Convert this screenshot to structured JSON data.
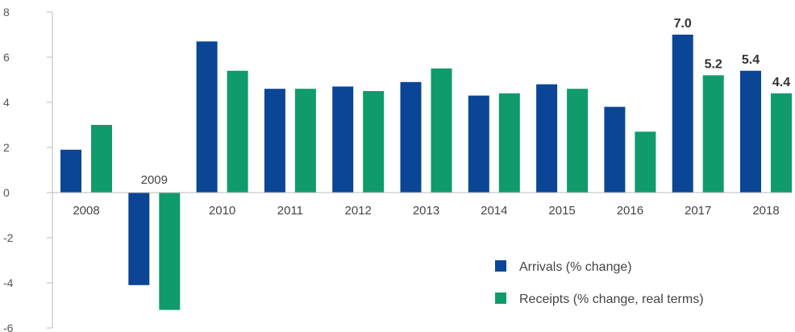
{
  "chart_data": {
    "type": "bar",
    "categories": [
      "2008",
      "2009",
      "2010",
      "2011",
      "2012",
      "2013",
      "2014",
      "2015",
      "2016",
      "2017",
      "2018"
    ],
    "series": [
      {
        "name": "Arrivals (% change)",
        "color": "#0b4595",
        "values": [
          1.9,
          -4.1,
          6.7,
          4.6,
          4.7,
          4.9,
          4.3,
          4.8,
          3.8,
          7.0,
          5.4
        ]
      },
      {
        "name": "Receipts (% change, real terms)",
        "color": "#0f9b6c",
        "values": [
          3.0,
          -5.2,
          5.4,
          4.6,
          4.5,
          5.5,
          4.4,
          4.6,
          2.7,
          5.2,
          4.4
        ]
      }
    ],
    "data_labels": [
      {
        "category": "2017",
        "series": 0,
        "text": "7.0"
      },
      {
        "category": "2017",
        "series": 1,
        "text": "5.2"
      },
      {
        "category": "2018",
        "series": 0,
        "text": "5.4"
      },
      {
        "category": "2018",
        "series": 1,
        "text": "4.4"
      }
    ],
    "yticks": [
      "8",
      "6",
      "4",
      "2",
      "0",
      "-2",
      "-4",
      "-6"
    ],
    "ylim": [
      -6,
      8
    ],
    "grid": false,
    "legend_position": "bottom-right",
    "title": "",
    "xlabel": "",
    "ylabel": ""
  }
}
